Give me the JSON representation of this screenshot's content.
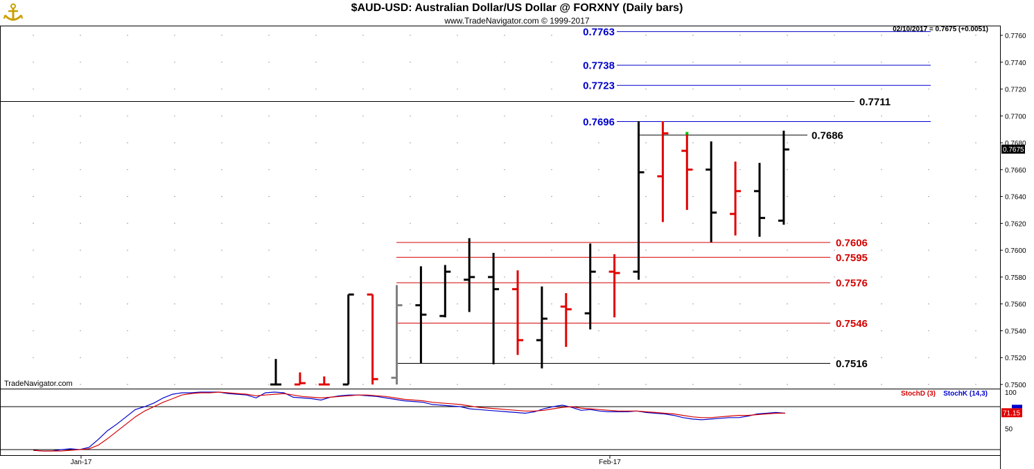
{
  "header": {
    "title": "$AUD-USD:  Australian Dollar/US Dollar @ FORXNY  (Daily bars)",
    "subtitle": "www.TradeNavigator.com © 1999-2017",
    "logo_icon": "trade-navigator-anchor-icon"
  },
  "watermark": "TradeNavigator.com",
  "last_bar_info": "02/10/2017 = 0.7675 (+0.0051)",
  "last_price_tag": "0.7675",
  "stoch_value_tag": "71.15",
  "colors": {
    "up_bar": "#000000",
    "down_bar": "#e00000",
    "neutral_bar": "#808080",
    "blue_line": "#0000cc",
    "red_line": "#d40000",
    "stoch_k": "#0000cc",
    "stoch_d": "#d40000"
  },
  "chart_data": [
    {
      "type": "ohlc",
      "y_axis": {
        "range": [
          0.7496,
          0.777
        ],
        "ticks": [
          "0.7500",
          "0.7520",
          "0.7540",
          "0.7560",
          "0.7580",
          "0.7600",
          "0.7620",
          "0.7640",
          "0.7660",
          "0.7680",
          "0.7700",
          "0.7720",
          "0.7740",
          "0.7760"
        ]
      },
      "x_axis": {
        "labels": [
          {
            "text": "Jan-17",
            "bar": -9
          },
          {
            "text": "Feb-17",
            "bar": 14
          }
        ]
      },
      "bars": [
        {
          "o": 0.75,
          "h": 0.7519,
          "l": 0.75,
          "c": 0.75,
          "color": "up"
        },
        {
          "o": 0.75,
          "h": 0.7509,
          "l": 0.75,
          "c": 0.7501,
          "color": "down"
        },
        {
          "o": 0.75,
          "h": 0.7506,
          "l": 0.75,
          "c": 0.75,
          "color": "down"
        },
        {
          "o": 0.75,
          "h": 0.7567,
          "l": 0.75,
          "c": 0.7567,
          "color": "up"
        },
        {
          "o": 0.7567,
          "h": 0.7567,
          "l": 0.75,
          "c": 0.7504,
          "color": "down"
        },
        {
          "o": 0.7505,
          "h": 0.7574,
          "l": 0.75,
          "c": 0.7559,
          "color": "neutral"
        },
        {
          "o": 0.7559,
          "h": 0.7588,
          "l": 0.7516,
          "c": 0.7552,
          "color": "up"
        },
        {
          "o": 0.7551,
          "h": 0.7589,
          "l": 0.755,
          "c": 0.7584,
          "color": "up"
        },
        {
          "o": 0.7578,
          "h": 0.7609,
          "l": 0.7554,
          "c": 0.758,
          "color": "up"
        },
        {
          "o": 0.758,
          "h": 0.7598,
          "l": 0.7515,
          "c": 0.7571,
          "color": "up"
        },
        {
          "o": 0.7571,
          "h": 0.7585,
          "l": 0.7522,
          "c": 0.7533,
          "color": "down"
        },
        {
          "o": 0.7533,
          "h": 0.7573,
          "l": 0.7512,
          "c": 0.7549,
          "color": "up"
        },
        {
          "o": 0.7558,
          "h": 0.7568,
          "l": 0.7528,
          "c": 0.7556,
          "color": "down"
        },
        {
          "o": 0.7553,
          "h": 0.7605,
          "l": 0.7541,
          "c": 0.7584,
          "color": "up"
        },
        {
          "o": 0.7584,
          "h": 0.7597,
          "l": 0.755,
          "c": 0.7583,
          "color": "down"
        },
        {
          "o": 0.7584,
          "h": 0.7696,
          "l": 0.7578,
          "c": 0.7658,
          "color": "up"
        },
        {
          "o": 0.7655,
          "h": 0.7696,
          "l": 0.7621,
          "c": 0.7687,
          "color": "down"
        },
        {
          "o": 0.7674,
          "h": 0.7687,
          "l": 0.763,
          "c": 0.766,
          "color": "down"
        },
        {
          "o": 0.766,
          "h": 0.7681,
          "l": 0.7606,
          "c": 0.7628,
          "color": "up"
        },
        {
          "o": 0.7627,
          "h": 0.7666,
          "l": 0.7611,
          "c": 0.7644,
          "color": "down"
        },
        {
          "o": 0.7644,
          "h": 0.7665,
          "l": 0.761,
          "c": 0.7624,
          "color": "up"
        },
        {
          "o": 0.7622,
          "h": 0.7689,
          "l": 0.7619,
          "c": 0.7675,
          "color": "up"
        }
      ],
      "levels": [
        {
          "label": "0.7763",
          "value": 0.7763,
          "color": "blue",
          "from_bar": 15
        },
        {
          "label": "0.7738",
          "value": 0.7738,
          "color": "blue",
          "from_bar": 15
        },
        {
          "label": "0.7723",
          "value": 0.7723,
          "color": "blue",
          "from_bar": 15
        },
        {
          "label": "0.7711",
          "value": 0.7711,
          "color": "black",
          "from_bar": -99
        },
        {
          "label": "0.7696",
          "value": 0.7696,
          "color": "blue",
          "from_bar": 15
        },
        {
          "label": "0.7686",
          "value": 0.7686,
          "color": "black",
          "from_bar": 15
        },
        {
          "label": "0.7606",
          "value": 0.7606,
          "color": "red",
          "from_bar": 5
        },
        {
          "label": "0.7595",
          "value": 0.7595,
          "color": "red",
          "from_bar": 5
        },
        {
          "label": "0.7576",
          "value": 0.7576,
          "color": "red",
          "from_bar": 5
        },
        {
          "label": "0.7546",
          "value": 0.7546,
          "color": "red",
          "from_bar": 5
        },
        {
          "label": "0.7516",
          "value": 0.7516,
          "color": "black",
          "from_bar": 5
        }
      ]
    },
    {
      "type": "line",
      "legend": [
        {
          "name": "StochD (3)",
          "color": "red"
        },
        {
          "name": "StochK (14,3)",
          "color": "blue"
        }
      ],
      "y_axis": {
        "range": [
          0,
          100
        ],
        "ticks": [
          "100",
          "50"
        ],
        "reference_line": 80
      },
      "series": [
        {
          "name": "StochK (14,3)",
          "values": [
            20,
            19,
            19,
            21,
            22,
            21,
            24,
            35,
            47,
            56,
            66,
            76,
            80,
            85,
            92,
            97,
            99,
            99,
            100,
            100,
            100,
            98,
            97,
            96,
            92,
            99,
            100,
            99,
            93,
            92,
            91,
            89,
            93,
            95,
            96,
            96,
            95,
            94,
            92,
            90,
            88,
            87,
            86,
            83,
            82,
            81,
            80,
            77,
            76,
            75,
            74,
            73,
            72,
            71,
            73,
            77,
            80,
            82,
            79,
            75,
            76,
            74,
            73,
            73,
            73,
            74,
            72,
            71,
            70,
            68,
            65,
            63,
            62,
            63,
            64,
            65,
            65,
            67,
            70,
            71,
            72,
            71
          ]
        },
        {
          "name": "StochD (3)",
          "values": [
            20,
            19,
            19,
            19,
            20,
            21,
            22,
            27,
            36,
            46,
            56,
            66,
            74,
            80,
            86,
            91,
            96,
            98,
            99,
            99,
            100,
            99,
            98,
            97,
            95,
            96,
            97,
            98,
            96,
            94,
            93,
            92,
            93,
            94,
            95,
            96,
            96,
            95,
            94,
            92,
            90,
            89,
            88,
            86,
            85,
            84,
            83,
            81,
            79,
            78,
            77,
            76,
            75,
            74,
            74,
            75,
            77,
            79,
            80,
            78,
            77,
            76,
            75,
            74,
            74,
            74,
            73,
            72,
            71,
            70,
            68,
            66,
            65,
            65,
            66,
            67,
            68,
            68,
            69,
            70,
            71,
            71
          ]
        }
      ]
    }
  ]
}
